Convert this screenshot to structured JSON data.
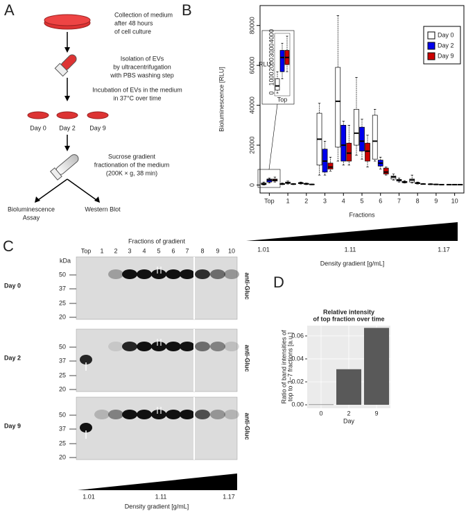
{
  "panel_a": {
    "label": "A",
    "steps": [
      [
        "Collection of medium",
        "after 48 hours",
        "of cell culture"
      ],
      [
        "Isolation of EVs",
        "by ultracentrifugation",
        "with PBS washing step"
      ],
      [
        "Incubation of EVs in the medium",
        "in 37°C over time"
      ],
      [
        "Sucrose gradient",
        "fractionation of the medium",
        "(200K × g, 38 min)"
      ]
    ],
    "days": [
      "Day 0",
      "Day 2",
      "Day 9"
    ],
    "assays": [
      [
        "Bioluminescence",
        "Assay"
      ],
      [
        "Western Blot"
      ]
    ]
  },
  "panel_b": {
    "label": "B",
    "density": {
      "ticks": [
        "1.01",
        "1.11",
        "1.17"
      ],
      "title": "Density gradient [g/mL]"
    }
  },
  "panel_c": {
    "label": "C",
    "title": "Fractions of gradient",
    "lanes": [
      "Top",
      "1",
      "2",
      "3",
      "4",
      "5",
      "6",
      "7",
      "8",
      "9",
      "10"
    ],
    "kda_title": "kDa",
    "kda": [
      "50",
      "37",
      "25",
      "20"
    ],
    "rows": [
      "Day 0",
      "Day 2",
      "Day 9"
    ],
    "antibody": "anti-Gluc",
    "density": {
      "ticks": [
        "1.01",
        "1.11",
        "1.17"
      ],
      "title": "Density gradient [g/mL]"
    }
  },
  "panel_d": {
    "label": "D"
  },
  "chart_data": [
    {
      "type": "boxplot",
      "ylabel": "Bioluminescence [RLU]",
      "xlabel": "Fractions",
      "categories": [
        "Top",
        "1",
        "2",
        "3",
        "4",
        "5",
        "6",
        "7",
        "8",
        "9",
        "10"
      ],
      "ylim": [
        -4000,
        90000
      ],
      "yticks": [
        0,
        20000,
        40000,
        60000,
        80000
      ],
      "legend": "topright",
      "series": [
        {
          "name": "Day 0",
          "color": "#ffffff",
          "values": [
            [
              0,
              200,
              500,
              1000,
              1500
            ],
            [
              200,
              300,
              500,
              700,
              1000
            ],
            [
              500,
              700,
              1000,
              1200,
              1500
            ],
            [
              5000,
              10000,
              23000,
              36000,
              41000
            ],
            [
              12000,
              19000,
              42000,
              59000,
              85000
            ],
            [
              15000,
              20000,
              26000,
              38000,
              54000
            ],
            [
              12000,
              13000,
              22000,
              35000,
              38000
            ],
            [
              2500,
              3000,
              4000,
              4500,
              5500
            ],
            [
              1000,
              1500,
              2500,
              3000,
              5000
            ],
            [
              200,
              300,
              400,
              500,
              700
            ],
            [
              100,
              150,
              200,
              250,
              300
            ]
          ]
        },
        {
          "name": "Day 2",
          "color": "#0000ee",
          "values": [
            [
              1000,
              1500,
              2500,
              3000,
              3500
            ],
            [
              500,
              800,
              1200,
              1500,
              2000
            ],
            [
              200,
              400,
              600,
              800,
              1000
            ],
            [
              5000,
              6500,
              12000,
              18000,
              22000
            ],
            [
              10000,
              12000,
              20000,
              30000,
              32000
            ],
            [
              13000,
              17000,
              22000,
              29000,
              33000
            ],
            [
              8000,
              9500,
              11000,
              12500,
              14000
            ],
            [
              1500,
              2000,
              2500,
              2800,
              3500
            ],
            [
              500,
              700,
              1000,
              1200,
              1500
            ],
            [
              100,
              200,
              300,
              400,
              500
            ],
            [
              100,
              150,
              200,
              250,
              300
            ]
          ]
        },
        {
          "name": "Day 9",
          "color": "#cc0000",
          "values": [
            [
              1500,
              2000,
              2500,
              3000,
              4000
            ],
            [
              200,
              300,
              500,
              600,
              800
            ],
            [
              100,
              200,
              300,
              400,
              500
            ],
            [
              7000,
              8000,
              9000,
              11000,
              14000
            ],
            [
              10000,
              12000,
              16000,
              21000,
              30000
            ],
            [
              9000,
              12000,
              17000,
              21000,
              25000
            ],
            [
              5000,
              5500,
              6500,
              8500,
              9000
            ],
            [
              1000,
              1200,
              1500,
              1800,
              2200
            ],
            [
              300,
              400,
              500,
              600,
              800
            ],
            [
              100,
              150,
              200,
              300,
              400
            ],
            [
              100,
              150,
              200,
              250,
              300
            ]
          ]
        }
      ],
      "inset": {
        "ylabel": "RLU",
        "category": "Top",
        "ylim": [
          0,
          4000
        ],
        "yticks": [
          0,
          1000,
          2000,
          3000,
          4000
        ]
      }
    },
    {
      "type": "bar",
      "title": [
        "Relative intensity",
        "of top fraction over time"
      ],
      "ylabel": [
        "Ratio of band intensities of",
        "top to 3−7 fractions [a.u.]"
      ],
      "xlabel": "Day",
      "categories": [
        "0",
        "2",
        "9"
      ],
      "values": [
        0.0003,
        0.031,
        0.067
      ],
      "color": "#595959",
      "ylim": [
        -0.003,
        0.069
      ],
      "yticks": [
        {
          "value": 0,
          "label": "0.00"
        },
        0.02,
        0.04,
        0.06
      ],
      "grid": true
    }
  ]
}
